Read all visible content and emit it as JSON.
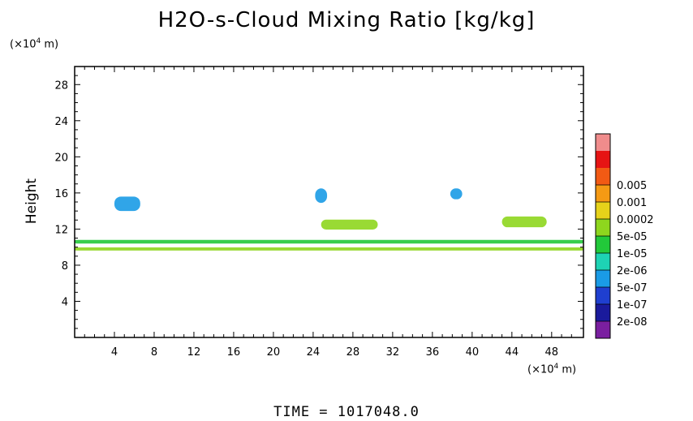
{
  "chart_data": {
    "type": "heatmap",
    "title": "H2O-s-Cloud Mixing Ratio [kg/kg]",
    "ylabel": "Height",
    "x_unit_prefix": "(×10",
    "x_unit_exp": "4",
    "x_unit_suffix": " m)",
    "y_unit_prefix": "(×10",
    "y_unit_exp": "4",
    "y_unit_suffix": " m)",
    "xlim": [
      0,
      51.2
    ],
    "ylim": [
      0,
      30
    ],
    "x_ticks": [
      4,
      8,
      12,
      16,
      20,
      24,
      28,
      32,
      36,
      40,
      44,
      48
    ],
    "y_ticks": [
      4,
      8,
      12,
      16,
      20,
      24,
      28
    ],
    "time_label": "TIME = 1017048.0",
    "colorbar": {
      "levels": [
        "2e-08",
        "1e-07",
        "5e-07",
        "2e-06",
        "1e-05",
        "5e-05",
        "0.0002",
        "0.001",
        "0.005"
      ],
      "colors": [
        "#7a1fa0",
        "#1a1a9c",
        "#1f3fd0",
        "#1a9be6",
        "#1ed3b4",
        "#22c93a",
        "#8ed61e",
        "#e6d21a",
        "#f59a14",
        "#f25a14",
        "#e61414",
        "#f08c8c"
      ]
    },
    "cloud_features": [
      {
        "x_range": [
          0,
          51.2
        ],
        "y": 9.8,
        "thickness": 0.35,
        "level": "5e-05"
      },
      {
        "x_range": [
          4,
          6.6
        ],
        "y": 14.8,
        "thickness": 1.6,
        "level": "5e-07"
      },
      {
        "x_range": [
          24.2,
          25.4
        ],
        "y": 15.7,
        "thickness": 1.6,
        "level": "5e-07"
      },
      {
        "x_range": [
          24.8,
          30.5
        ],
        "y": 12.5,
        "thickness": 1.1,
        "level": "5e-05"
      },
      {
        "x_range": [
          37.8,
          39.0
        ],
        "y": 15.9,
        "thickness": 1.2,
        "level": "5e-07"
      },
      {
        "x_range": [
          43.0,
          47.5
        ],
        "y": 12.8,
        "thickness": 1.2,
        "level": "5e-05"
      },
      {
        "x_range": [
          0,
          51.2
        ],
        "y": 10.6,
        "thickness": 0.4,
        "level": "1e-05"
      }
    ]
  }
}
